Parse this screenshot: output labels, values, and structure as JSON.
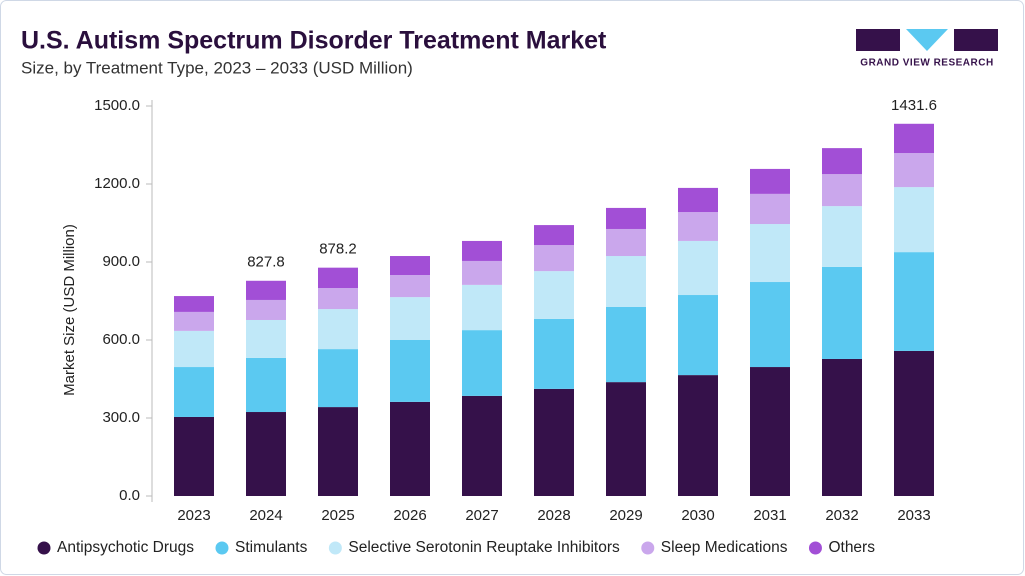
{
  "chart_data": {
    "type": "stacked-bar",
    "title": "U.S. Autism Spectrum Disorder Treatment Market",
    "subtitle": "Size, by Treatment Type, 2023 – 2033 (USD Million)",
    "logo_text": "GRAND VIEW RESEARCH",
    "y_label": "Market Size (USD Million)",
    "categories": [
      "2023",
      "2024",
      "2025",
      "2026",
      "2027",
      "2028",
      "2029",
      "2030",
      "2031",
      "2032",
      "2033"
    ],
    "series": [
      {
        "name": "Antipsychotic Drugs",
        "color": "#35114a",
        "values": [
          304,
          323,
          342,
          362,
          385,
          412,
          438,
          465,
          496,
          527,
          558
        ]
      },
      {
        "name": "Stimulants",
        "color": "#5bc9f1",
        "values": [
          192,
          208,
          223,
          238,
          253,
          269,
          289,
          308,
          327,
          354,
          380
        ]
      },
      {
        "name": "Selective Serotonin Reuptake Inhibitors",
        "color": "#c0e8f8",
        "values": [
          139,
          146,
          154,
          165,
          174,
          184,
          196,
          208,
          223,
          234,
          250
        ]
      },
      {
        "name": "Sleep Medications",
        "color": "#caa7ec",
        "values": [
          73,
          77,
          81,
          85,
          92,
          100,
          104,
          111,
          116,
          123,
          131
        ]
      },
      {
        "name": "Others",
        "color": "#a24fd6",
        "values": [
          61,
          73.8,
          78.2,
          73,
          77,
          77,
          81,
          93,
          96,
          100,
          112.6
        ]
      }
    ],
    "annotations": [
      {
        "category": "2024",
        "value": 827.8
      },
      {
        "category": "2025",
        "value": 878.2
      },
      {
        "category": "2033",
        "value": 1431.6
      }
    ],
    "ylim": [
      0,
      1500
    ],
    "yticks": [
      {
        "value": 0,
        "label": "0.0"
      },
      {
        "value": 300,
        "label": "300.0"
      },
      {
        "value": 600,
        "label": "600.0"
      },
      {
        "value": 900,
        "label": "900.0"
      },
      {
        "value": 1200,
        "label": "1200.0"
      },
      {
        "value": 1500,
        "label": "1500.0"
      }
    ],
    "grid": false
  }
}
